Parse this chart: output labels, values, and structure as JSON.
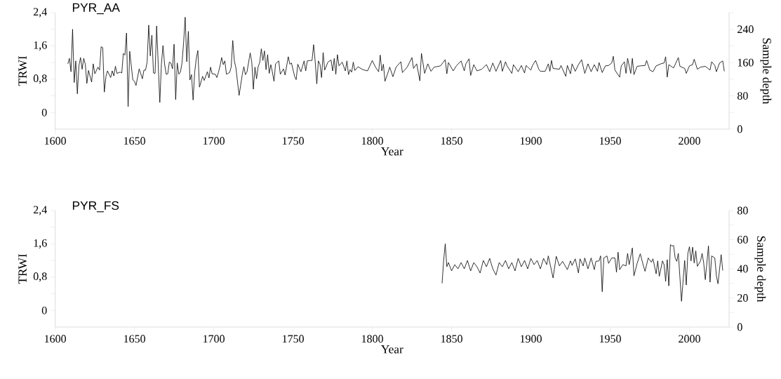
{
  "chart_data": [
    {
      "type": "line",
      "title": "PYR_AA",
      "xlabel": "Year",
      "ylabel": "TRWI",
      "y2label": "Sample depth",
      "color": "#000000",
      "xlim": [
        1600,
        2025
      ],
      "xticks": [
        1600,
        1650,
        1700,
        1750,
        1800,
        1850,
        1900,
        1950,
        2000
      ],
      "ylim": [
        -0.4,
        2.4
      ],
      "yticks": [
        0,
        {
          "value": 0.4,
          "label": null
        },
        {
          "value": 0.8,
          "label": "0,8"
        },
        {
          "value": 1.2,
          "label": null
        },
        {
          "value": 1.6,
          "label": "1,6"
        },
        {
          "value": 2.0,
          "label": null
        },
        {
          "value": 2.4,
          "label": "2,4"
        }
      ],
      "y2lim": [
        0,
        280
      ],
      "y2ticks": [
        0,
        {
          "value": 40,
          "label": null
        },
        80,
        {
          "value": 120,
          "label": null
        },
        160,
        {
          "value": 200,
          "label": null
        },
        240,
        {
          "value": 280,
          "label": null
        }
      ],
      "x": [
        1608,
        1609,
        1610,
        1611,
        1612,
        1613,
        1614,
        1615,
        1616,
        1617,
        1618,
        1619,
        1620,
        1621,
        1623,
        1624,
        1625,
        1627,
        1628,
        1629,
        1630,
        1631,
        1632,
        1633,
        1635,
        1636,
        1637,
        1638,
        1639,
        1641,
        1642,
        1643,
        1644,
        1645,
        1646,
        1647,
        1649,
        1650,
        1651,
        1653,
        1655,
        1656,
        1657,
        1658,
        1659,
        1660,
        1661,
        1662,
        1663,
        1664,
        1665,
        1666,
        1667,
        1668,
        1669,
        1670,
        1671,
        1672,
        1673,
        1674,
        1675,
        1676,
        1677,
        1678,
        1679,
        1680,
        1681,
        1682,
        1683,
        1684,
        1685,
        1686,
        1687,
        1688,
        1689,
        1690,
        1691,
        1693,
        1694,
        1696,
        1697,
        1698,
        1699,
        1701,
        1702,
        1703,
        1704,
        1705,
        1706,
        1707,
        1708,
        1710,
        1711,
        1712,
        1713,
        1714,
        1716,
        1718,
        1719,
        1720,
        1721,
        1723,
        1724,
        1725,
        1726,
        1727,
        1728,
        1729,
        1730,
        1731,
        1732,
        1733,
        1734,
        1735,
        1736,
        1737,
        1738,
        1739,
        1741,
        1742,
        1744,
        1745,
        1747,
        1748,
        1749,
        1751,
        1752,
        1753,
        1755,
        1757,
        1758,
        1759,
        1761,
        1762,
        1763,
        1764,
        1765,
        1766,
        1767,
        1768,
        1769,
        1770,
        1772,
        1774,
        1775,
        1776,
        1777,
        1778,
        1779,
        1781,
        1783,
        1784,
        1785,
        1786,
        1787,
        1788,
        1789,
        1791,
        1794,
        1797,
        1800,
        1802,
        1804,
        1805,
        1806,
        1807,
        1808,
        1810,
        1811,
        1813,
        1815,
        1818,
        1819,
        1822,
        1825,
        1826,
        1828,
        1830,
        1831,
        1833,
        1835,
        1837,
        1839,
        1843,
        1846,
        1847,
        1848,
        1851,
        1853,
        1856,
        1858,
        1859,
        1861,
        1862,
        1864,
        1866,
        1869,
        1872,
        1874,
        1876,
        1878,
        1881,
        1882,
        1884,
        1885,
        1888,
        1889,
        1892,
        1894,
        1896,
        1897,
        1900,
        1901,
        1903,
        1905,
        1906,
        1909,
        1911,
        1912,
        1913,
        1914,
        1918,
        1919,
        1922,
        1923,
        1925,
        1926,
        1928,
        1930,
        1932,
        1934,
        1936,
        1938,
        1940,
        1942,
        1943,
        1945,
        1947,
        1949,
        1951,
        1952,
        1953,
        1956,
        1957,
        1959,
        1960,
        1961,
        1963,
        1964,
        1965,
        1967,
        1969,
        1972,
        1973,
        1975,
        1977,
        1979,
        1982,
        1984,
        1985,
        1986,
        1987,
        1990,
        1993,
        1994,
        1997,
        1998,
        2000,
        2002,
        2003,
        2005,
        2007,
        2010,
        2013,
        2014,
        2016,
        2017,
        2019,
        2021,
        2022
      ],
      "values": [
        1.17,
        1.3,
        0.98,
        2.0,
        0.72,
        1.24,
        0.45,
        1.13,
        1.32,
        1.04,
        1.3,
        1.16,
        0.7,
        1.01,
        0.73,
        1.17,
        0.93,
        1.09,
        1.02,
        1.58,
        1.56,
        0.49,
        0.86,
        1.0,
        0.84,
        1.0,
        0.88,
        1.11,
        0.94,
        0.97,
        0.95,
        1.42,
        1.38,
        1.91,
        0.14,
        1.47,
        0.78,
        0.75,
        0.65,
        1.05,
        0.81,
        1.02,
        1.02,
        1.21,
        2.1,
        1.36,
        1.86,
        0.95,
        0.94,
        2.08,
        1.16,
        0.24,
        1.16,
        1.61,
        1.17,
        0.92,
        0.93,
        1.21,
        1.19,
        1.05,
        1.64,
        0.31,
        1.19,
        0.92,
        0.97,
        1.19,
        1.68,
        2.29,
        1.22,
        1.95,
        0.78,
        0.91,
        0.3,
        0.97,
        1.3,
        1.49,
        0.61,
        0.87,
        0.77,
        0.98,
        0.83,
        1.09,
        0.93,
        0.92,
        0.84,
        0.97,
        1.12,
        1.32,
        1.15,
        1.24,
        0.92,
        0.96,
        1.09,
        1.73,
        1.24,
        1.07,
        0.41,
        0.91,
        1.1,
        0.91,
        0.98,
        1.43,
        1.21,
        0.56,
        1.09,
        0.81,
        1.1,
        1.2,
        1.53,
        1.25,
        1.48,
        1.03,
        1.39,
        0.94,
        1.15,
        0.97,
        0.75,
        1.17,
        1.24,
        0.92,
        1.05,
        0.9,
        1.34,
        1.16,
        1.19,
        0.87,
        0.79,
        1.16,
        0.98,
        1.24,
        1.0,
        1.24,
        1.25,
        1.25,
        1.63,
        1.22,
        0.69,
        1.24,
        1.16,
        0.84,
        1.44,
        1.02,
        1.21,
        1.26,
        1.0,
        1.3,
        0.92,
        1.39,
        1.12,
        1.21,
        1.0,
        1.24,
        0.91,
        1.03,
        0.97,
        1.21,
        1.01,
        1.1,
        1.03,
        1.0,
        1.25,
        1.09,
        0.98,
        1.38,
        1.0,
        1.16,
        0.75,
        0.97,
        1.09,
        0.86,
        1.09,
        1.22,
        0.96,
        1.09,
        1.32,
        1.06,
        1.17,
        0.76,
        1.42,
        0.94,
        1.17,
        0.99,
        1.09,
        1.12,
        1.27,
        0.93,
        1.2,
        1.0,
        1.12,
        1.24,
        1.0,
        1.17,
        1.29,
        0.89,
        1.15,
        1.0,
        1.04,
        1.15,
        0.98,
        1.19,
        0.99,
        1.25,
        0.99,
        1.22,
        1.12,
        0.94,
        1.15,
        0.98,
        1.13,
        0.95,
        1.13,
        1.02,
        1.13,
        1.25,
        1.04,
        0.99,
        0.99,
        1.17,
        0.99,
        1.25,
        1.06,
        1.04,
        1.13,
        0.87,
        1.13,
        0.93,
        1.17,
        0.99,
        1.15,
        1.27,
        0.94,
        1.17,
        0.98,
        1.15,
        0.99,
        1.2,
        0.96,
        1.12,
        1.13,
        1.19,
        1.35,
        1.02,
        0.85,
        1.12,
        1.22,
        0.94,
        1.3,
        0.94,
        1.3,
        0.91,
        1.11,
        1.12,
        1.13,
        1.25,
        1.02,
        0.98,
        1.12,
        1.17,
        1.19,
        1.34,
        0.85,
        1.15,
        1.07,
        1.32,
        1.11,
        1.06,
        0.94,
        1.12,
        1.15,
        1.28,
        1.04,
        1.09,
        1.11,
        1.02,
        1.22,
        1.13,
        0.98,
        1.19,
        1.24,
        0.99
      ]
    },
    {
      "type": "line",
      "title": "PYR_FS",
      "xlabel": "Year",
      "ylabel": "TRWI",
      "y2label": "Sample depth",
      "color": "#000000",
      "xlim": [
        1600,
        2025
      ],
      "xticks": [
        1600,
        1650,
        1700,
        1750,
        1800,
        1850,
        1900,
        1950,
        2000
      ],
      "ylim": [
        -0.4,
        2.4
      ],
      "yticks": [
        0,
        {
          "value": 0.4,
          "label": null
        },
        {
          "value": 0.8,
          "label": "0,8"
        },
        {
          "value": 1.2,
          "label": null
        },
        {
          "value": 1.6,
          "label": "1,6"
        },
        {
          "value": 2.0,
          "label": null
        },
        {
          "value": 2.4,
          "label": "2,4"
        }
      ],
      "y2lim": [
        0,
        80
      ],
      "y2ticks": [
        0,
        {
          "value": 10,
          "label": null
        },
        20,
        {
          "value": 30,
          "label": null
        },
        40,
        {
          "value": 50,
          "label": null
        },
        60,
        {
          "value": 70,
          "label": null
        },
        80
      ],
      "x": [
        1844,
        1845,
        1846,
        1847,
        1848,
        1850,
        1852,
        1854,
        1856,
        1858,
        1860,
        1862,
        1864,
        1866,
        1868,
        1870,
        1872,
        1874,
        1876,
        1878,
        1880,
        1882,
        1884,
        1886,
        1888,
        1890,
        1892,
        1894,
        1896,
        1898,
        1900,
        1902,
        1904,
        1906,
        1908,
        1910,
        1911,
        1914,
        1916,
        1918,
        1920,
        1923,
        1925,
        1926,
        1928,
        1930,
        1931,
        1933,
        1934,
        1936,
        1938,
        1940,
        1941,
        1943,
        1944,
        1945,
        1946,
        1948,
        1949,
        1951,
        1953,
        1954,
        1955,
        1956,
        1958,
        1960,
        1961,
        1962,
        1964,
        1965,
        1967,
        1969,
        1971,
        1972,
        1974,
        1976,
        1977,
        1979,
        1980,
        1981,
        1983,
        1984,
        1985,
        1986,
        1987,
        1988,
        1989,
        1990,
        1991,
        1992,
        1993,
        1995,
        1997,
        1998,
        1999,
        2000,
        2001,
        2002,
        2003,
        2004,
        2005,
        2007,
        2008,
        2009,
        2010,
        2012,
        2013,
        2014,
        2016,
        2017,
        2018,
        2020,
        2021
      ],
      "values": [
        0.65,
        1.2,
        1.6,
        1.05,
        1.15,
        0.95,
        1.1,
        1.0,
        1.15,
        1.0,
        1.2,
        0.95,
        1.15,
        1.05,
        0.9,
        1.2,
        1.05,
        1.25,
        1.0,
        0.85,
        1.15,
        1.05,
        1.2,
        1.0,
        1.15,
        0.95,
        1.25,
        1.05,
        1.2,
        1.0,
        1.25,
        1.1,
        1.2,
        1.0,
        1.25,
        1.1,
        1.31,
        0.78,
        1.3,
        1.07,
        1.18,
        0.98,
        1.19,
        1.08,
        1.24,
        0.9,
        1.24,
        1.07,
        1.26,
        1.0,
        1.26,
        0.98,
        1.18,
        1.19,
        1.31,
        0.45,
        1.26,
        1.31,
        1.13,
        1.26,
        1.26,
        0.92,
        1.4,
        0.98,
        1.1,
        1.07,
        1.37,
        1.1,
        1.5,
        0.83,
        1.13,
        1.36,
        1.07,
        0.94,
        1.26,
        1.16,
        1.24,
        0.88,
        1.19,
        0.82,
        1.19,
        1.1,
        0.7,
        1.22,
        0.59,
        1.58,
        1.55,
        1.56,
        1.26,
        1.18,
        1.37,
        0.22,
        1.2,
        0.61,
        1.37,
        1.53,
        1.19,
        1.52,
        1.14,
        1.43,
        1.06,
        1.19,
        1.37,
        1.14,
        0.74,
        1.55,
        0.68,
        1.31,
        1.26,
        0.83,
        0.64,
        1.34,
        0.96
      ]
    }
  ]
}
